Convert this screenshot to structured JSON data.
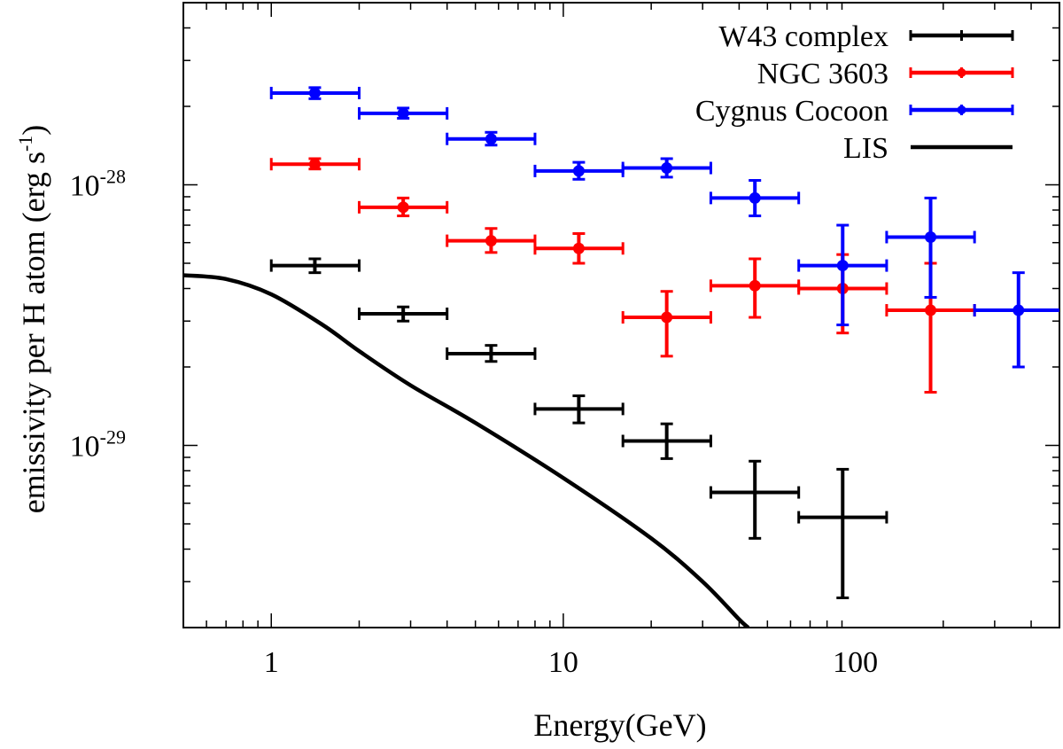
{
  "chart_data": {
    "type": "scatter",
    "title": "",
    "xlabel": "Energy(GeV)",
    "ylabel": {
      "main": "emissivity per H atom (erg s",
      "sup": "-1",
      "close": ")"
    },
    "x_scale": "log",
    "y_scale": "log",
    "xlim": [
      0.5,
      500
    ],
    "ylim": [
      2e-30,
      5e-28
    ],
    "x_ticks": [
      {
        "value": 1,
        "label": "1"
      },
      {
        "value": 10,
        "label": "10"
      },
      {
        "value": 100,
        "label": "100"
      }
    ],
    "y_ticks": [
      {
        "value": 1e-28,
        "base": "10",
        "exp": "-28"
      },
      {
        "value": 1e-29,
        "base": "10",
        "exp": "-29"
      }
    ],
    "grid": false,
    "legend_position": "top-right",
    "series": [
      {
        "name": "W43 complex",
        "color": "#000000",
        "marker": "none",
        "points": [
          {
            "x": 1.41,
            "xlo": 1,
            "xhi": 2,
            "y": 4.9e-29,
            "ylo": 4.6e-29,
            "yhi": 5.2e-29
          },
          {
            "x": 2.83,
            "xlo": 2,
            "xhi": 4,
            "y": 3.2e-29,
            "ylo": 3e-29,
            "yhi": 3.4e-29
          },
          {
            "x": 5.66,
            "xlo": 4,
            "xhi": 8,
            "y": 2.25e-29,
            "ylo": 2.1e-29,
            "yhi": 2.42e-29
          },
          {
            "x": 11.3,
            "xlo": 8,
            "xhi": 16,
            "y": 1.38e-29,
            "ylo": 1.22e-29,
            "yhi": 1.55e-29
          },
          {
            "x": 22.6,
            "xlo": 16,
            "xhi": 32,
            "y": 1.04e-29,
            "ylo": 8.9e-30,
            "yhi": 1.21e-29
          },
          {
            "x": 45.3,
            "xlo": 32,
            "xhi": 64,
            "y": 6.6e-30,
            "ylo": 4.4e-30,
            "yhi": 8.7e-30
          },
          {
            "x": 90.5,
            "xlo": 64,
            "xhi": 128,
            "y": 5.3e-30,
            "ylo": 2.6e-30,
            "yhi": 8.1e-30
          }
        ]
      },
      {
        "name": "NGC 3603",
        "color": "#ff0000",
        "marker": "circle",
        "points": [
          {
            "x": 1.41,
            "xlo": 1,
            "xhi": 2,
            "y": 1.2e-28,
            "ylo": 1.15e-28,
            "yhi": 1.26e-28
          },
          {
            "x": 2.83,
            "xlo": 2,
            "xhi": 4,
            "y": 8.2e-29,
            "ylo": 7.6e-29,
            "yhi": 8.9e-29
          },
          {
            "x": 5.66,
            "xlo": 4,
            "xhi": 8,
            "y": 6.1e-29,
            "ylo": 5.5e-29,
            "yhi": 6.8e-29
          },
          {
            "x": 11.3,
            "xlo": 8,
            "xhi": 16,
            "y": 5.7e-29,
            "ylo": 5e-29,
            "yhi": 6.5e-29
          },
          {
            "x": 22.6,
            "xlo": 16,
            "xhi": 32,
            "y": 3.1e-29,
            "ylo": 2.2e-29,
            "yhi": 3.9e-29
          },
          {
            "x": 45.3,
            "xlo": 32,
            "xhi": 64,
            "y": 4.1e-29,
            "ylo": 3.1e-29,
            "yhi": 5.2e-29
          },
          {
            "x": 90.5,
            "xlo": 64,
            "xhi": 128,
            "y": 4e-29,
            "ylo": 2.7e-29,
            "yhi": 5.4e-29
          },
          {
            "x": 181,
            "xlo": 128,
            "xhi": 256,
            "y": 3.3e-29,
            "ylo": 1.6e-29,
            "yhi": 5e-29
          }
        ]
      },
      {
        "name": "Cygnus Cocoon",
        "color": "#0000ff",
        "marker": "circle",
        "points": [
          {
            "x": 1.41,
            "xlo": 1,
            "xhi": 2,
            "y": 2.25e-28,
            "ylo": 2.14e-28,
            "yhi": 2.36e-28
          },
          {
            "x": 2.83,
            "xlo": 2,
            "xhi": 4,
            "y": 1.88e-28,
            "ylo": 1.8e-28,
            "yhi": 1.97e-28
          },
          {
            "x": 5.66,
            "xlo": 4,
            "xhi": 8,
            "y": 1.5e-28,
            "ylo": 1.42e-28,
            "yhi": 1.59e-28
          },
          {
            "x": 11.3,
            "xlo": 8,
            "xhi": 16,
            "y": 1.13e-28,
            "ylo": 1.05e-28,
            "yhi": 1.22e-28
          },
          {
            "x": 22.6,
            "xlo": 16,
            "xhi": 32,
            "y": 1.16e-28,
            "ylo": 1.07e-28,
            "yhi": 1.26e-28
          },
          {
            "x": 45.3,
            "xlo": 32,
            "xhi": 64,
            "y": 8.9e-29,
            "ylo": 7.6e-29,
            "yhi": 1.04e-28
          },
          {
            "x": 90.5,
            "xlo": 64,
            "xhi": 128,
            "y": 4.9e-29,
            "ylo": 2.9e-29,
            "yhi": 7e-29
          },
          {
            "x": 181,
            "xlo": 128,
            "xhi": 256,
            "y": 6.3e-29,
            "ylo": 3.7e-29,
            "yhi": 8.9e-29
          },
          {
            "x": 362,
            "xlo": 256,
            "xhi": 512,
            "y": 3.3e-29,
            "ylo": 2e-29,
            "yhi": 4.6e-29
          }
        ]
      },
      {
        "name": "LIS",
        "color": "#000000",
        "type": "line",
        "points": [
          {
            "x": 0.5,
            "y": 4.5e-29
          },
          {
            "x": 0.7,
            "y": 4.35e-29
          },
          {
            "x": 1.0,
            "y": 3.8e-29
          },
          {
            "x": 1.5,
            "y": 2.9e-29
          },
          {
            "x": 2.0,
            "y": 2.3e-29
          },
          {
            "x": 3.0,
            "y": 1.7e-29
          },
          {
            "x": 5.0,
            "y": 1.22e-29
          },
          {
            "x": 10,
            "y": 7.5e-30
          },
          {
            "x": 20,
            "y": 4.4e-30
          },
          {
            "x": 30,
            "y": 3e-30
          },
          {
            "x": 40,
            "y": 2.15e-30
          },
          {
            "x": 43,
            "y": 2e-30
          }
        ]
      }
    ]
  }
}
